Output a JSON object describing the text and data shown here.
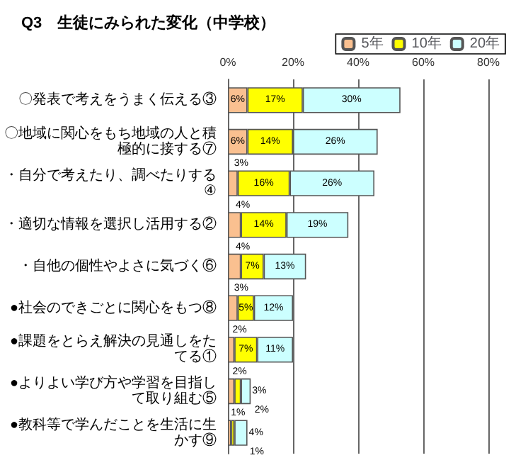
{
  "chart_data": {
    "type": "bar",
    "orientation": "horizontal",
    "stacked": true,
    "title": "Q3　生徒にみられた変化（中学校）",
    "categories": [
      "〇発表で考えをうまく伝える③",
      "〇地域に関心をもち地域の人と積極的に接する⑦",
      "・自分で考えたり、調べたりする④",
      "・適切な情報を選択し活用する②",
      "・自他の個性やよさに気づく⑥",
      "●社会のできごとに関心をもつ⑧",
      "●課題をとらえ解決の見通しをたてる①",
      "●よりよい学び方や学習を目指して取り組む⑤",
      "●教科等で学んだことを生活に生かす⑨"
    ],
    "series": [
      {
        "name": "5年",
        "color": "#fac090",
        "values": [
          6,
          6,
          3,
          4,
          4,
          3,
          2,
          2,
          1
        ],
        "value_labels": [
          "6%",
          "6%",
          "3%",
          "4%",
          "4%",
          "3%",
          "2%",
          "2%",
          "1%"
        ]
      },
      {
        "name": "10年",
        "color": "#ffff00",
        "values": [
          17,
          14,
          16,
          14,
          7,
          5,
          7,
          2,
          1
        ],
        "value_labels": [
          "17%",
          "14%",
          "16%",
          "14%",
          "7%",
          "5%",
          "7%",
          "2%",
          "1%"
        ]
      },
      {
        "name": "20年",
        "color": "#ccffff",
        "values": [
          30,
          26,
          26,
          19,
          13,
          12,
          11,
          3,
          4
        ],
        "value_labels": [
          "30%",
          "26%",
          "26%",
          "19%",
          "13%",
          "12%",
          "11%",
          "3%",
          "4%"
        ]
      }
    ],
    "xlim": [
      0,
      80
    ],
    "xticks": [
      {
        "value": 0,
        "label": "0%"
      },
      {
        "value": 20,
        "label": "20%"
      },
      {
        "value": 40,
        "label": "40%"
      },
      {
        "value": 60,
        "label": "60%"
      },
      {
        "value": 80,
        "label": "80%"
      }
    ],
    "grid": "x",
    "legend": "top right"
  }
}
